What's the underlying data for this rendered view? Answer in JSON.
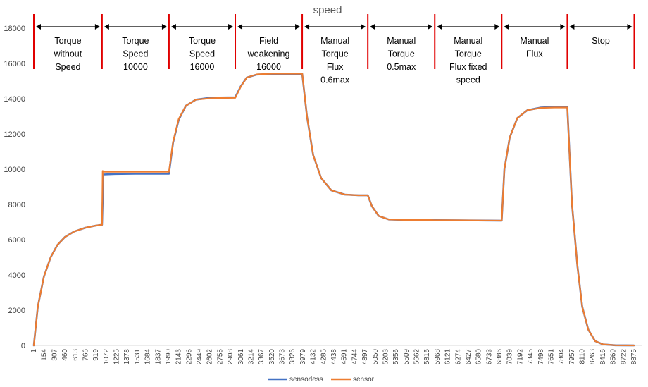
{
  "chart_data": {
    "type": "line",
    "title": "speed",
    "xlabel": "",
    "ylabel": "",
    "ylim": [
      0,
      18000
    ],
    "xlim": [
      1,
      9000
    ],
    "y_ticks": [
      0,
      2000,
      4000,
      6000,
      8000,
      10000,
      12000,
      14000,
      16000,
      18000
    ],
    "x_ticks": [
      1,
      154,
      307,
      460,
      613,
      766,
      919,
      1072,
      1225,
      1378,
      1531,
      1684,
      1837,
      1990,
      2143,
      2296,
      2449,
      2602,
      2755,
      2908,
      3061,
      3214,
      3367,
      3520,
      3673,
      3826,
      3979,
      4132,
      4285,
      4438,
      4591,
      4744,
      4897,
      5050,
      5203,
      5356,
      5509,
      5662,
      5815,
      5968,
      6121,
      6274,
      6427,
      6580,
      6733,
      6886,
      7039,
      7192,
      7345,
      7498,
      7651,
      7804,
      7957,
      8110,
      8263,
      8416,
      8569,
      8722,
      8875
    ],
    "grid": false,
    "legend_position": "bottom",
    "phase_boundaries": [
      1,
      1010,
      2000,
      2980,
      3970,
      4940,
      5930,
      6920,
      7890,
      8880
    ],
    "phases": [
      {
        "label": "Torque\nwithout\nSpeed",
        "start": 1,
        "end": 1010
      },
      {
        "label": "Torque\nSpeed\n10000",
        "start": 1010,
        "end": 2000
      },
      {
        "label": "Torque\nSpeed\n16000",
        "start": 2000,
        "end": 2980
      },
      {
        "label": "Field\nweakening\n16000",
        "start": 2980,
        "end": 3970
      },
      {
        "label": "Manual\nTorque\nFlux\n0.6max",
        "start": 3970,
        "end": 4940
      },
      {
        "label": "Manual\nTorque\n0.5max",
        "start": 4940,
        "end": 5930
      },
      {
        "label": "Manual\nTorque\nFlux fixed\nspeed",
        "start": 5930,
        "end": 6920
      },
      {
        "label": "Manual\nFlux",
        "start": 6920,
        "end": 7890
      },
      {
        "label": "Stop",
        "start": 7890,
        "end": 8880
      }
    ],
    "series": [
      {
        "name": "sensorless",
        "color": "#4472C4",
        "points": [
          [
            1,
            0
          ],
          [
            60,
            2200
          ],
          [
            150,
            3900
          ],
          [
            250,
            5000
          ],
          [
            350,
            5700
          ],
          [
            460,
            6150
          ],
          [
            600,
            6470
          ],
          [
            766,
            6680
          ],
          [
            919,
            6800
          ],
          [
            1010,
            6850
          ],
          [
            1030,
            9700
          ],
          [
            1200,
            9730
          ],
          [
            1500,
            9740
          ],
          [
            1800,
            9740
          ],
          [
            2000,
            9740
          ],
          [
            2060,
            11500
          ],
          [
            2143,
            12800
          ],
          [
            2250,
            13600
          ],
          [
            2400,
            13950
          ],
          [
            2602,
            14050
          ],
          [
            2755,
            14070
          ],
          [
            2980,
            14080
          ],
          [
            3061,
            14700
          ],
          [
            3150,
            15200
          ],
          [
            3300,
            15370
          ],
          [
            3520,
            15400
          ],
          [
            3826,
            15400
          ],
          [
            3970,
            15400
          ],
          [
            4040,
            13000
          ],
          [
            4132,
            10800
          ],
          [
            4250,
            9500
          ],
          [
            4400,
            8800
          ],
          [
            4600,
            8560
          ],
          [
            4800,
            8520
          ],
          [
            4940,
            8520
          ],
          [
            5000,
            7900
          ],
          [
            5100,
            7350
          ],
          [
            5250,
            7150
          ],
          [
            5509,
            7120
          ],
          [
            5815,
            7120
          ],
          [
            5930,
            7110
          ],
          [
            6300,
            7100
          ],
          [
            6700,
            7090
          ],
          [
            6920,
            7080
          ],
          [
            6960,
            10000
          ],
          [
            7039,
            11800
          ],
          [
            7150,
            12900
          ],
          [
            7300,
            13350
          ],
          [
            7500,
            13500
          ],
          [
            7700,
            13540
          ],
          [
            7890,
            13540
          ],
          [
            7960,
            8000
          ],
          [
            8040,
            4500
          ],
          [
            8110,
            2200
          ],
          [
            8200,
            900
          ],
          [
            8300,
            250
          ],
          [
            8416,
            60
          ],
          [
            8600,
            10
          ],
          [
            8875,
            0
          ]
        ]
      },
      {
        "name": "sensor",
        "color": "#ED7D31",
        "points": [
          [
            1,
            0
          ],
          [
            60,
            2200
          ],
          [
            150,
            3900
          ],
          [
            250,
            5000
          ],
          [
            350,
            5700
          ],
          [
            460,
            6150
          ],
          [
            600,
            6470
          ],
          [
            766,
            6680
          ],
          [
            919,
            6800
          ],
          [
            1010,
            6850
          ],
          [
            1020,
            9900
          ],
          [
            1050,
            9850
          ],
          [
            1200,
            9850
          ],
          [
            1500,
            9850
          ],
          [
            1800,
            9850
          ],
          [
            2000,
            9850
          ],
          [
            2060,
            11550
          ],
          [
            2143,
            12850
          ],
          [
            2250,
            13600
          ],
          [
            2400,
            13950
          ],
          [
            2602,
            14020
          ],
          [
            2755,
            14040
          ],
          [
            2980,
            14050
          ],
          [
            3061,
            14680
          ],
          [
            3150,
            15200
          ],
          [
            3300,
            15380
          ],
          [
            3520,
            15420
          ],
          [
            3826,
            15420
          ],
          [
            3970,
            15420
          ],
          [
            4040,
            13000
          ],
          [
            4132,
            10800
          ],
          [
            4250,
            9500
          ],
          [
            4400,
            8800
          ],
          [
            4600,
            8560
          ],
          [
            4800,
            8520
          ],
          [
            4940,
            8520
          ],
          [
            5000,
            7900
          ],
          [
            5100,
            7350
          ],
          [
            5250,
            7150
          ],
          [
            5509,
            7120
          ],
          [
            5815,
            7120
          ],
          [
            5930,
            7110
          ],
          [
            6300,
            7100
          ],
          [
            6700,
            7090
          ],
          [
            6920,
            7080
          ],
          [
            6960,
            10000
          ],
          [
            7039,
            11800
          ],
          [
            7150,
            12900
          ],
          [
            7300,
            13350
          ],
          [
            7500,
            13480
          ],
          [
            7700,
            13500
          ],
          [
            7890,
            13500
          ],
          [
            7960,
            8000
          ],
          [
            8040,
            4500
          ],
          [
            8110,
            2200
          ],
          [
            8200,
            900
          ],
          [
            8300,
            250
          ],
          [
            8416,
            60
          ],
          [
            8600,
            10
          ],
          [
            8875,
            0
          ]
        ]
      }
    ]
  }
}
